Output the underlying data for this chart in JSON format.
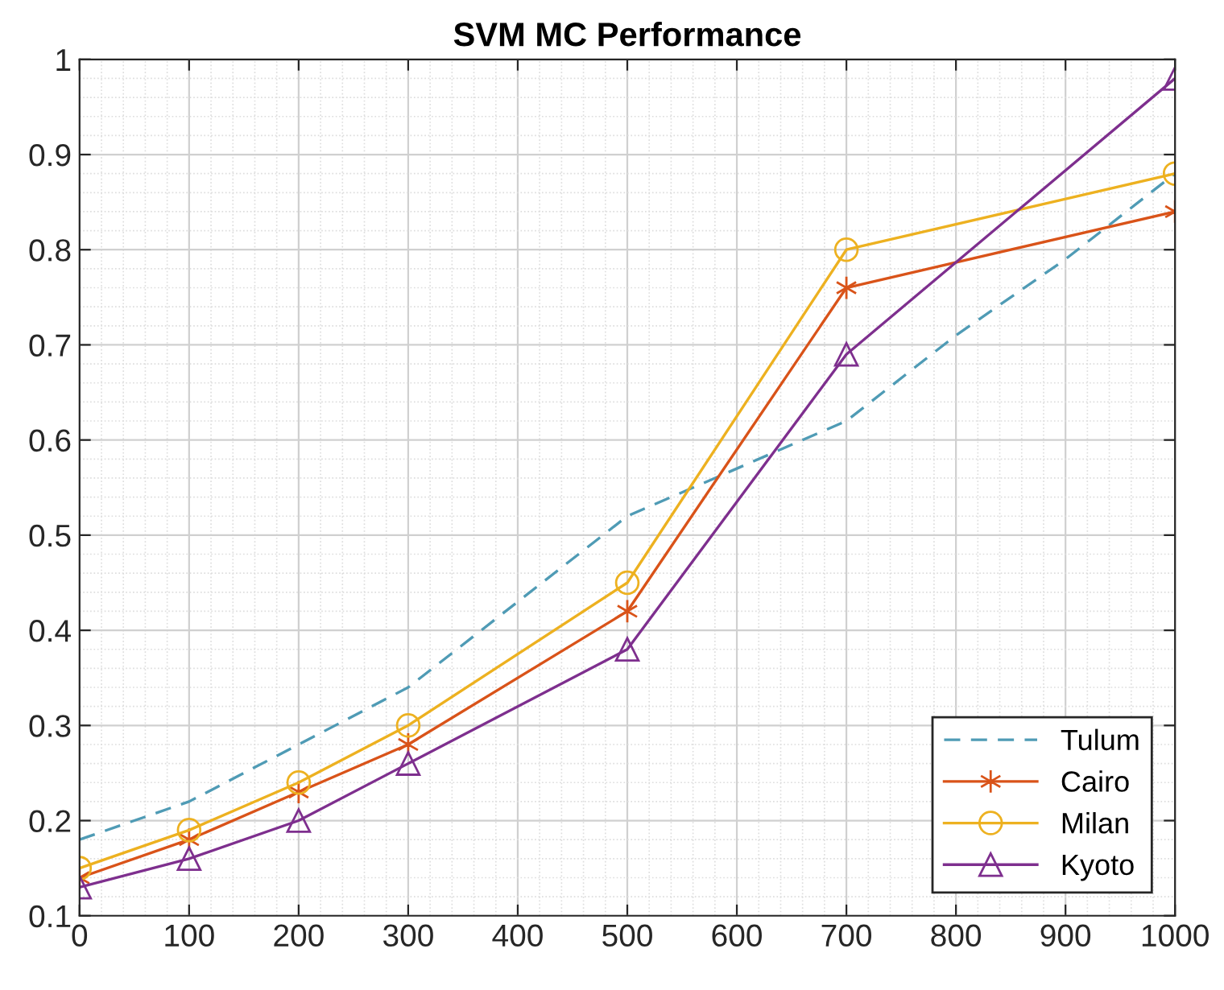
{
  "chart_data": {
    "type": "line",
    "title": "SVM MC Performance",
    "xlim": [
      0,
      1000
    ],
    "xticks": [
      0,
      100,
      200,
      300,
      400,
      500,
      600,
      700,
      800,
      900,
      1000
    ],
    "ylim": [
      0.1,
      1
    ],
    "yticks": [
      0.1,
      0.2,
      0.3,
      0.4,
      0.5,
      0.6,
      0.7,
      0.8,
      0.9,
      1
    ],
    "grid": true,
    "legend": "bottom right",
    "series": [
      {
        "name": "Tulum",
        "color": "#4f9bb5",
        "line_style": "dashed",
        "marker": "none",
        "x": [
          0,
          100,
          200,
          300,
          400,
          500,
          600,
          700,
          800,
          900,
          1000
        ],
        "values": [
          0.18,
          0.22,
          0.28,
          0.34,
          0.43,
          0.52,
          0.57,
          0.62,
          0.71,
          0.79,
          0.88
        ]
      },
      {
        "name": "Cairo",
        "color": "#d95319",
        "line_style": "solid",
        "marker": "cross",
        "x": [
          0,
          100,
          200,
          300,
          500,
          700,
          1000
        ],
        "values": [
          0.14,
          0.18,
          0.23,
          0.28,
          0.42,
          0.76,
          0.84
        ]
      },
      {
        "name": "Milan",
        "color": "#edb120",
        "line_style": "solid",
        "marker": "circle",
        "x": [
          0,
          100,
          200,
          300,
          500,
          700,
          1000
        ],
        "values": [
          0.15,
          0.19,
          0.24,
          0.3,
          0.45,
          0.8,
          0.88
        ]
      },
      {
        "name": "Kyoto",
        "color": "#7e2f8e",
        "line_style": "solid",
        "marker": "triangle",
        "x": [
          0,
          100,
          200,
          300,
          500,
          700,
          1000
        ],
        "values": [
          0.13,
          0.16,
          0.2,
          0.26,
          0.38,
          0.69,
          0.98
        ]
      }
    ]
  }
}
